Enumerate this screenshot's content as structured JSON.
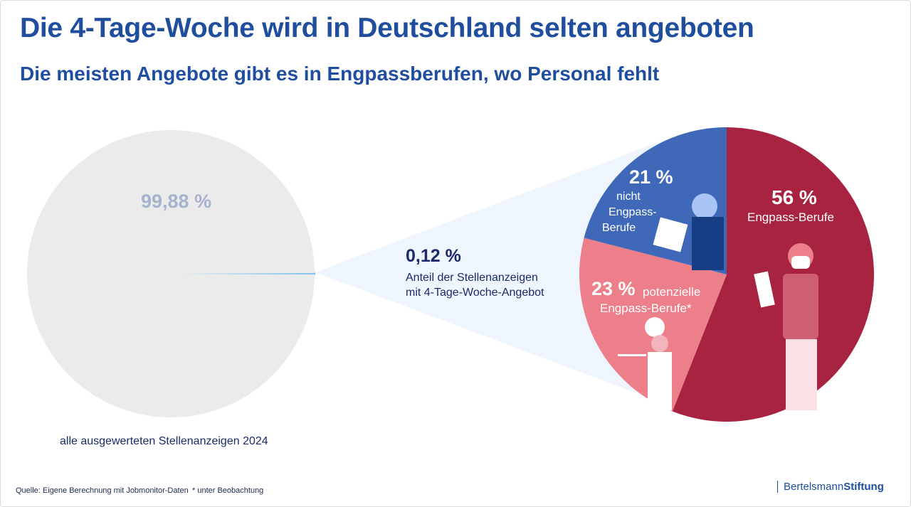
{
  "title": "Die 4-Tage-Woche wird in Deutschland selten angeboten",
  "subtitle": "Die meisten Angebote gibt es in Engpassberufen, wo Personal fehlt",
  "chart_data": [
    {
      "type": "pie",
      "caption": "alle ausgewerteten Stellenanzeigen 2024",
      "slices": [
        {
          "label": "99,88 %",
          "value": 99.88,
          "color": "#ebebeb"
        },
        {
          "label": "0,12 %",
          "value": 0.12,
          "color": "#5bb8f0",
          "description": "Anteil der Stellenanzeigen mit 4-Tage-Woche-Angebot"
        }
      ]
    },
    {
      "type": "pie",
      "slices": [
        {
          "pct": "56 %",
          "label": "Engpass-Berufe",
          "value": 56,
          "color": "#a8233f"
        },
        {
          "pct": "23 %",
          "label": "potenzielle Engpass-Berufe*",
          "value": 23,
          "color": "#ec7f8a"
        },
        {
          "pct": "21 %",
          "label": "nicht Engpass-Berufe",
          "value": 21,
          "color": "#3f69b8"
        }
      ]
    }
  ],
  "callout": {
    "value": "0,12 %",
    "line1": "Anteil der Stellenanzeigen",
    "line2": "mit 4-Tage-Woche-Angebot"
  },
  "labels": {
    "big": "99,88 %",
    "caption": "alle ausgewerteten Stellenanzeigen 2024",
    "red_pct": "56 %",
    "red_label": "Engpass-Berufe",
    "pink_pct": "23 %",
    "pink_label1": "potenzielle",
    "pink_label2": "Engpass-Berufe*",
    "blue_pct": "21 %",
    "blue_l1": "nicht",
    "blue_l2": "Engpass-",
    "blue_l3": "Berufe"
  },
  "footer": {
    "source": "Quelle: Eigene Berechnung mit Jobmonitor-Daten",
    "note": "* unter Beobachtung",
    "logo_a": "Bertelsmann",
    "logo_b": "Stiftung"
  }
}
